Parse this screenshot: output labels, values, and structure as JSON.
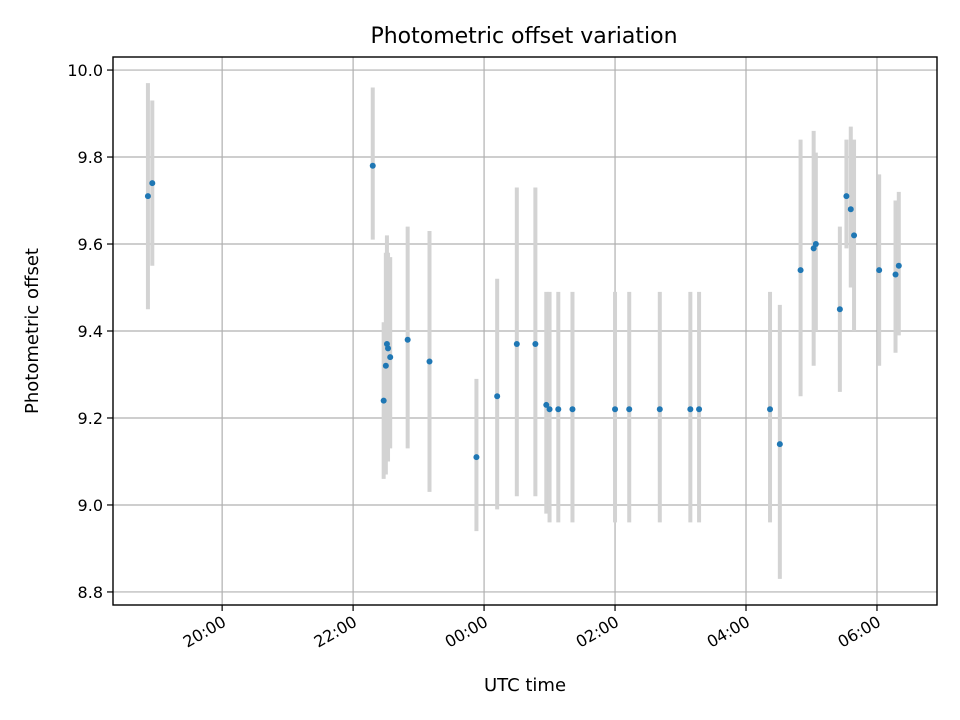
{
  "chart_data": {
    "type": "scatter",
    "title": "Photometric offset variation",
    "xlabel": "UTC time",
    "ylabel": "Photometric offset",
    "x_axis_kind": "time",
    "x_ticks": [
      "20:00",
      "22:00",
      "00:00",
      "02:00",
      "04:00",
      "06:00"
    ],
    "x_tick_times": [
      "20:00",
      "22:00",
      "24:00",
      "26:00",
      "28:00",
      "30:00"
    ],
    "xlim": [
      "18:20",
      "30:55"
    ],
    "y_ticks": [
      "8.8",
      "9.0",
      "9.2",
      "9.4",
      "9.6",
      "9.8",
      "10.0"
    ],
    "ylim": [
      8.77,
      10.03
    ],
    "grid": true,
    "colors": {
      "point": "#1f77b4",
      "error_bar": "#d3d3d3",
      "grid": "#b0b0b0"
    },
    "series": [
      {
        "points": [
          {
            "t": "18:52",
            "y": 9.71,
            "lo": 9.45,
            "hi": 9.97
          },
          {
            "t": "18:56",
            "y": 9.74,
            "lo": 9.55,
            "hi": 9.93
          },
          {
            "t": "22:18",
            "y": 9.78,
            "lo": 9.61,
            "hi": 9.96
          },
          {
            "t": "22:28",
            "y": 9.24,
            "lo": 9.06,
            "hi": 9.42
          },
          {
            "t": "22:30",
            "y": 9.32,
            "lo": 9.07,
            "hi": 9.58
          },
          {
            "t": "22:31",
            "y": 9.37,
            "lo": 9.11,
            "hi": 9.62
          },
          {
            "t": "22:32",
            "y": 9.36,
            "lo": 9.1,
            "hi": 9.58
          },
          {
            "t": "22:34",
            "y": 9.34,
            "lo": 9.13,
            "hi": 9.57
          },
          {
            "t": "22:50",
            "y": 9.38,
            "lo": 9.13,
            "hi": 9.64
          },
          {
            "t": "23:10",
            "y": 9.33,
            "lo": 9.03,
            "hi": 9.63
          },
          {
            "t": "23:53",
            "y": 9.11,
            "lo": 8.94,
            "hi": 9.29
          },
          {
            "t": "24:12",
            "y": 9.25,
            "lo": 8.99,
            "hi": 9.52
          },
          {
            "t": "24:30",
            "y": 9.37,
            "lo": 9.02,
            "hi": 9.73
          },
          {
            "t": "24:47",
            "y": 9.37,
            "lo": 9.02,
            "hi": 9.73
          },
          {
            "t": "24:57",
            "y": 9.23,
            "lo": 8.98,
            "hi": 9.49
          },
          {
            "t": "25:00",
            "y": 9.22,
            "lo": 8.96,
            "hi": 9.49
          },
          {
            "t": "25:08",
            "y": 9.22,
            "lo": 8.96,
            "hi": 9.49
          },
          {
            "t": "25:21",
            "y": 9.22,
            "lo": 8.96,
            "hi": 9.49
          },
          {
            "t": "26:00",
            "y": 9.22,
            "lo": 8.96,
            "hi": 9.49
          },
          {
            "t": "26:13",
            "y": 9.22,
            "lo": 8.96,
            "hi": 9.49
          },
          {
            "t": "26:41",
            "y": 9.22,
            "lo": 8.96,
            "hi": 9.49
          },
          {
            "t": "27:09",
            "y": 9.22,
            "lo": 8.96,
            "hi": 9.49
          },
          {
            "t": "27:17",
            "y": 9.22,
            "lo": 8.96,
            "hi": 9.49
          },
          {
            "t": "28:22",
            "y": 9.22,
            "lo": 8.96,
            "hi": 9.49
          },
          {
            "t": "28:31",
            "y": 9.14,
            "lo": 8.83,
            "hi": 9.46
          },
          {
            "t": "28:50",
            "y": 9.54,
            "lo": 9.25,
            "hi": 9.84
          },
          {
            "t": "29:02",
            "y": 9.59,
            "lo": 9.32,
            "hi": 9.86
          },
          {
            "t": "29:04",
            "y": 9.6,
            "lo": 9.4,
            "hi": 9.81
          },
          {
            "t": "29:26",
            "y": 9.45,
            "lo": 9.26,
            "hi": 9.64
          },
          {
            "t": "29:32",
            "y": 9.71,
            "lo": 9.59,
            "hi": 9.84
          },
          {
            "t": "29:36",
            "y": 9.68,
            "lo": 9.5,
            "hi": 9.87
          },
          {
            "t": "29:39",
            "y": 9.62,
            "lo": 9.4,
            "hi": 9.84
          },
          {
            "t": "30:02",
            "y": 9.54,
            "lo": 9.32,
            "hi": 9.76
          },
          {
            "t": "30:17",
            "y": 9.53,
            "lo": 9.35,
            "hi": 9.7
          },
          {
            "t": "30:20",
            "y": 9.55,
            "lo": 9.39,
            "hi": 9.72
          }
        ]
      }
    ]
  }
}
